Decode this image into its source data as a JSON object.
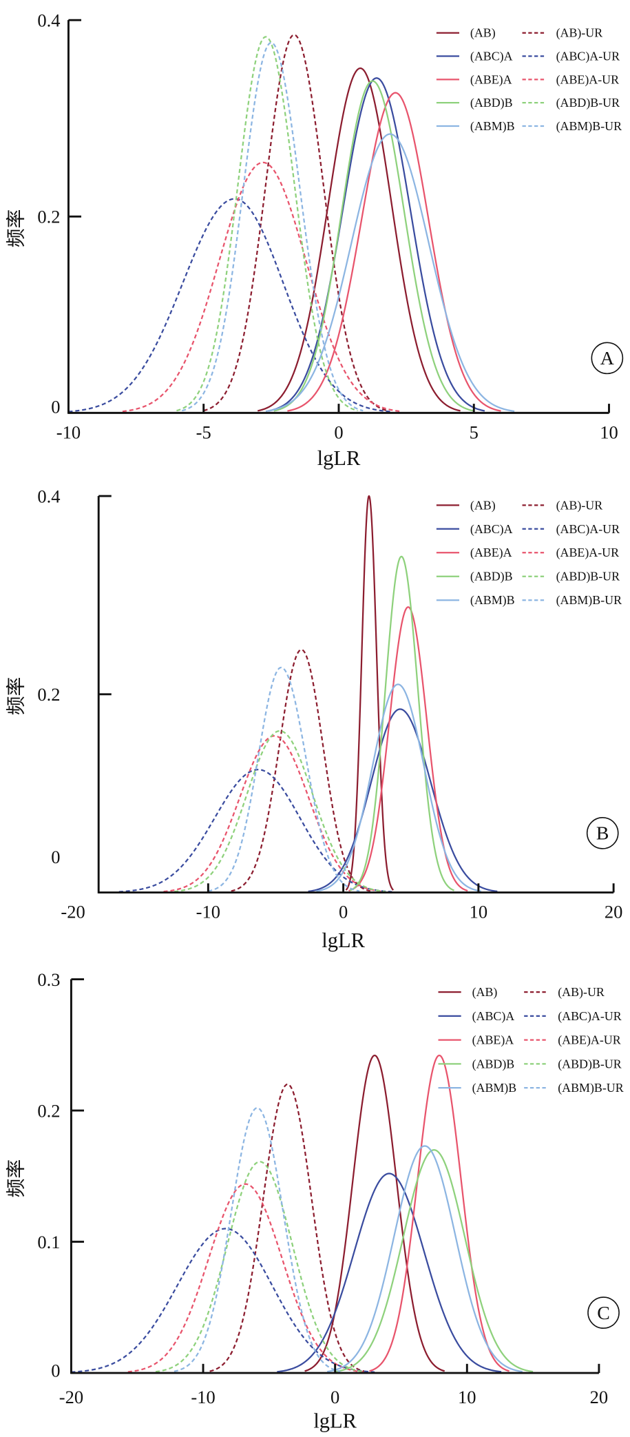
{
  "chart_data": [
    {
      "type": "line",
      "panel_label": "A",
      "xlabel": "lgLR",
      "ylabel": "频率",
      "xlim": [
        -10,
        10
      ],
      "ylim": [
        0,
        0.4
      ],
      "x_ticks": [
        -10,
        -5,
        0,
        5,
        10
      ],
      "y_ticks": [
        0,
        0.2,
        0.4
      ],
      "grid": false,
      "legend_position": "top-right",
      "series": [
        {
          "name": "(AB)",
          "line": "solid",
          "color": "#8C1D2F",
          "peak_x": 0.8,
          "peak_y": 0.351,
          "x_start": -3.0,
          "x_end": 4.5
        },
        {
          "name": "(AB)-UR",
          "line": "dashed",
          "color": "#8C1D2F",
          "peak_x": -1.65,
          "peak_y": 0.385,
          "x_start": -5.0,
          "x_end": 1.8
        },
        {
          "name": "(ABC)A",
          "line": "solid",
          "color": "#3A4C9F",
          "peak_x": 1.4,
          "peak_y": 0.341,
          "x_start": -2.6,
          "x_end": 5.4
        },
        {
          "name": "(ABC)A-UR",
          "line": "dashed",
          "color": "#3A4C9F",
          "peak_x": -3.85,
          "peak_y": 0.218,
          "x_start": -10,
          "x_end": 1.9
        },
        {
          "name": "(ABE)A",
          "line": "solid",
          "color": "#E8546C",
          "peak_x": 2.1,
          "peak_y": 0.326,
          "x_start": -1.9,
          "x_end": 6.0
        },
        {
          "name": "(ABE)A-UR",
          "line": "dashed",
          "color": "#E8546C",
          "peak_x": -2.8,
          "peak_y": 0.255,
          "x_start": -8.0,
          "x_end": 2.3
        },
        {
          "name": "(ABD)B",
          "line": "solid",
          "color": "#8ED17C",
          "peak_x": 1.25,
          "peak_y": 0.338,
          "x_start": -2.4,
          "x_end": 5.0
        },
        {
          "name": "(ABD)B-UR",
          "line": "dashed",
          "color": "#8ED17C",
          "peak_x": -2.7,
          "peak_y": 0.383,
          "x_start": -6.0,
          "x_end": 0.7
        },
        {
          "name": "(ABM)B",
          "line": "solid",
          "color": "#8CB5E2",
          "peak_x": 1.9,
          "peak_y": 0.284,
          "x_start": -2.7,
          "x_end": 6.5
        },
        {
          "name": "(ABM)B-UR",
          "line": "dashed",
          "color": "#8CB5E2",
          "peak_x": -2.5,
          "peak_y": 0.377,
          "x_start": -5.8,
          "x_end": 0.9
        }
      ]
    },
    {
      "type": "line",
      "panel_label": "B",
      "xlabel": "lgLR",
      "ylabel": "频率",
      "xlim": [
        -20,
        20
      ],
      "ylim": [
        0,
        0.4
      ],
      "x_ticks": [
        -20,
        -10,
        0,
        10,
        20
      ],
      "y_ticks": [
        0,
        0.2,
        0.4
      ],
      "grid": false,
      "legend_position": "top-right",
      "series": [
        {
          "name": "(AB)",
          "line": "solid",
          "color": "#8C1D2F",
          "peak_x": 1.9,
          "peak_y": 0.4,
          "x_start": 0.2,
          "x_end": 3.7
        },
        {
          "name": "(AB)-UR",
          "line": "dashed",
          "color": "#8C1D2F",
          "peak_x": -3.1,
          "peak_y": 0.245,
          "x_start": -8.3,
          "x_end": 2.0
        },
        {
          "name": "(ABC)A",
          "line": "solid",
          "color": "#3A4C9F",
          "peak_x": 4.2,
          "peak_y": 0.185,
          "x_start": -2.6,
          "x_end": 11.4
        },
        {
          "name": "(ABC)A-UR",
          "line": "dashed",
          "color": "#3A4C9F",
          "peak_x": -6.3,
          "peak_y": 0.124,
          "x_start": -16.6,
          "x_end": 3.6
        },
        {
          "name": "(ABE)A",
          "line": "solid",
          "color": "#E8546C",
          "peak_x": 4.8,
          "peak_y": 0.288,
          "x_start": 0.4,
          "x_end": 9.2
        },
        {
          "name": "(ABE)A-UR",
          "line": "dashed",
          "color": "#E8546C",
          "peak_x": -5.1,
          "peak_y": 0.158,
          "x_start": -13.3,
          "x_end": 3.0
        },
        {
          "name": "(ABD)B",
          "line": "solid",
          "color": "#8ED17C",
          "peak_x": 4.3,
          "peak_y": 0.339,
          "x_start": 0.5,
          "x_end": 8.2
        },
        {
          "name": "(ABD)B-UR",
          "line": "dashed",
          "color": "#8ED17C",
          "peak_x": -4.7,
          "peak_y": 0.163,
          "x_start": -12.5,
          "x_end": 3.1
        },
        {
          "name": "(ABM)B",
          "line": "solid",
          "color": "#8CB5E2",
          "peak_x": 4.05,
          "peak_y": 0.21,
          "x_start": -2.0,
          "x_end": 10.2
        },
        {
          "name": "(ABM)B-UR",
          "line": "dashed",
          "color": "#8CB5E2",
          "peak_x": -4.6,
          "peak_y": 0.227,
          "x_start": -10.0,
          "x_end": 1.2
        }
      ]
    },
    {
      "type": "line",
      "panel_label": "C",
      "xlabel": "lgLR",
      "ylabel": "频率",
      "xlim": [
        -20,
        20
      ],
      "ylim": [
        0,
        0.3
      ],
      "x_ticks": [
        -20,
        -10,
        0,
        10,
        20
      ],
      "y_ticks": [
        0,
        0.1,
        0.2,
        0.3
      ],
      "grid": false,
      "legend_position": "top-right",
      "series": [
        {
          "name": "(AB)",
          "line": "solid",
          "color": "#8C1D2F",
          "peak_x": 3.0,
          "peak_y": 0.242,
          "x_start": -2.3,
          "x_end": 8.3
        },
        {
          "name": "(AB)-UR",
          "line": "dashed",
          "color": "#8C1D2F",
          "peak_x": -3.6,
          "peak_y": 0.22,
          "x_start": -9.5,
          "x_end": 2.2
        },
        {
          "name": "(ABC)A",
          "line": "solid",
          "color": "#3A4C9F",
          "peak_x": 4.1,
          "peak_y": 0.152,
          "x_start": -4.4,
          "x_end": 12.6
        },
        {
          "name": "(ABC)A-UR",
          "line": "dashed",
          "color": "#3A4C9F",
          "peak_x": -8.3,
          "peak_y": 0.11,
          "x_start": -20,
          "x_end": 3.0
        },
        {
          "name": "(ABE)A",
          "line": "solid",
          "color": "#E8546C",
          "peak_x": 7.9,
          "peak_y": 0.242,
          "x_start": 2.6,
          "x_end": 13.2
        },
        {
          "name": "(ABE)A-UR",
          "line": "dashed",
          "color": "#E8546C",
          "peak_x": -6.8,
          "peak_y": 0.144,
          "x_start": -15.7,
          "x_end": 2.1
        },
        {
          "name": "(ABD)B",
          "line": "solid",
          "color": "#8ED17C",
          "peak_x": 7.5,
          "peak_y": 0.17,
          "x_start": 0.0,
          "x_end": 15.0
        },
        {
          "name": "(ABD)B-UR",
          "line": "dashed",
          "color": "#8ED17C",
          "peak_x": -5.7,
          "peak_y": 0.161,
          "x_start": -13.6,
          "x_end": 2.2
        },
        {
          "name": "(ABM)B",
          "line": "solid",
          "color": "#8CB5E2",
          "peak_x": 6.8,
          "peak_y": 0.173,
          "x_start": -0.6,
          "x_end": 14.2
        },
        {
          "name": "(ABM)B-UR",
          "line": "dashed",
          "color": "#8CB5E2",
          "peak_x": -5.9,
          "peak_y": 0.202,
          "x_start": -12.2,
          "x_end": 0.4
        }
      ]
    }
  ]
}
